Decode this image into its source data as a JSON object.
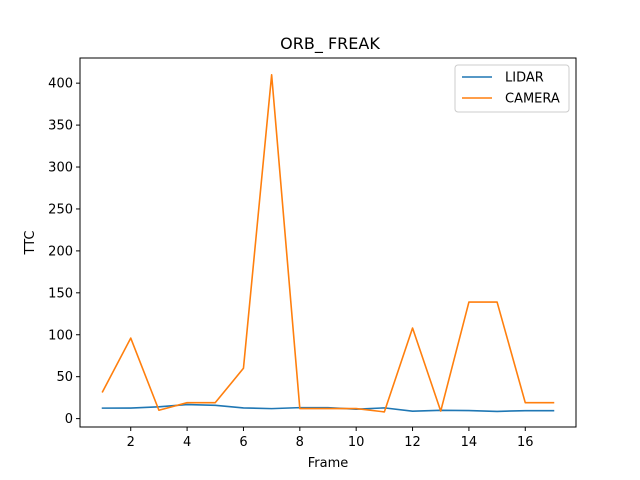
{
  "chart_data": {
    "type": "line",
    "title": "ORB_ FREAK",
    "xlabel": "Frame",
    "ylabel": "TTC",
    "xlim": [
      0.2,
      17.8
    ],
    "ylim": [
      -10,
      430
    ],
    "xticks": [
      2,
      4,
      6,
      8,
      10,
      12,
      14,
      16
    ],
    "yticks": [
      0,
      50,
      100,
      150,
      200,
      250,
      300,
      350,
      400
    ],
    "grid": false,
    "legend_position": "top-right",
    "x": [
      1,
      2,
      3,
      4,
      5,
      6,
      7,
      8,
      9,
      10,
      11,
      12,
      13,
      14,
      15,
      16,
      17
    ],
    "series": [
      {
        "name": "LIDAR",
        "color": "#1f77b4",
        "values": [
          12.5,
          12.6,
          14.1,
          16.7,
          15.9,
          12.7,
          11.9,
          13.1,
          13.0,
          11.2,
          12.8,
          8.9,
          9.9,
          9.6,
          8.6,
          9.5,
          9.5
        ]
      },
      {
        "name": "CAMERA",
        "color": "#ff7f0e",
        "values": [
          32,
          96,
          10,
          19,
          19,
          60,
          410,
          12,
          12,
          12,
          8,
          108,
          9,
          139,
          139,
          19,
          19
        ]
      }
    ]
  }
}
